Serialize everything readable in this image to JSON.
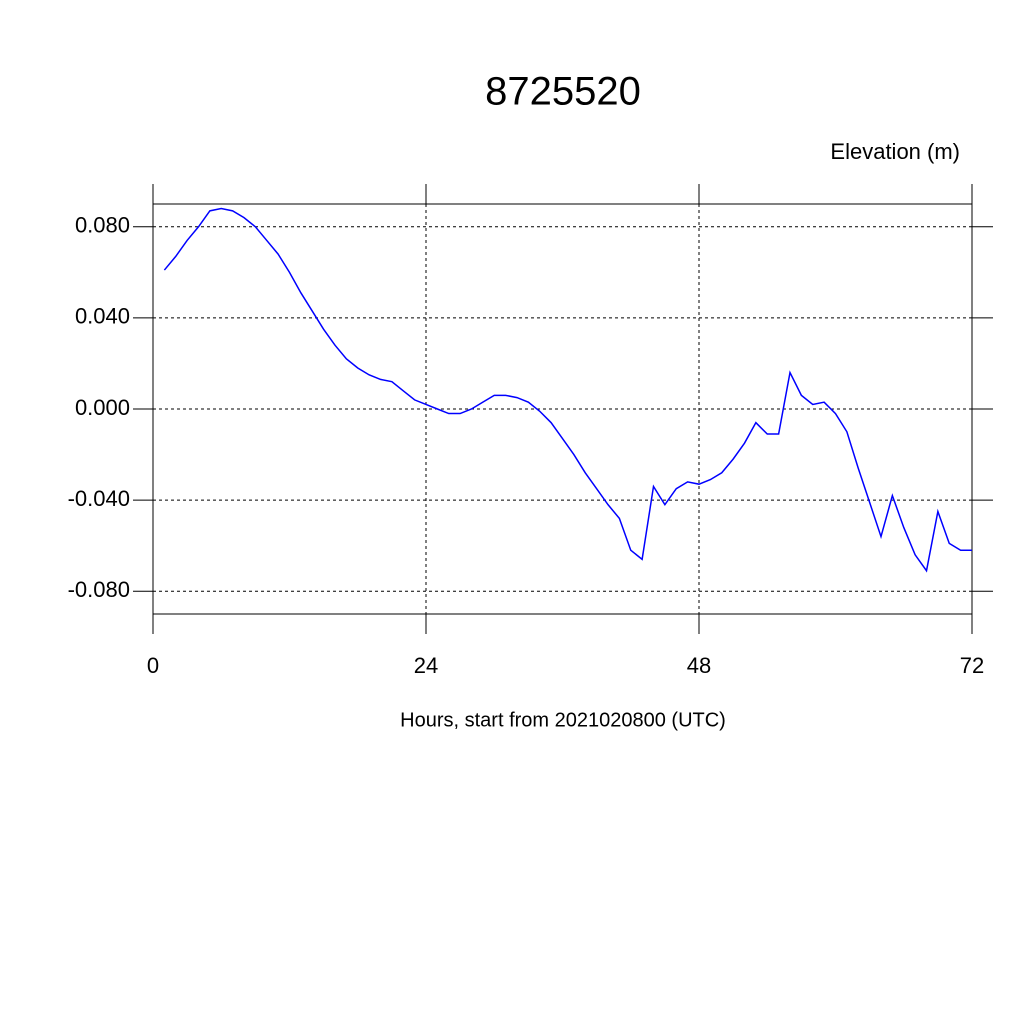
{
  "chart_data": {
    "type": "line",
    "title": "8725520",
    "ylabel": "Elevation (m)",
    "xlabel": "Hours, start from 2021020800 (UTC)",
    "x": [
      1,
      2,
      3,
      4,
      5,
      6,
      7,
      8,
      9,
      10,
      11,
      12,
      13,
      14,
      15,
      16,
      17,
      18,
      19,
      20,
      21,
      22,
      23,
      24,
      25,
      26,
      27,
      28,
      29,
      30,
      31,
      32,
      33,
      34,
      35,
      36,
      37,
      38,
      39,
      40,
      41,
      42,
      43,
      44,
      45,
      46,
      47,
      48,
      49,
      50,
      51,
      52,
      53,
      54,
      55,
      56,
      57,
      58,
      59,
      60,
      61,
      62,
      63,
      64,
      65,
      66,
      67,
      68,
      69,
      70,
      71,
      72
    ],
    "series": [
      {
        "color": "#0000ff",
        "values": [
          0.061,
          0.067,
          0.074,
          0.08,
          0.087,
          0.088,
          0.087,
          0.084,
          0.08,
          0.074,
          0.068,
          0.06,
          0.051,
          0.043,
          0.035,
          0.028,
          0.022,
          0.018,
          0.015,
          0.013,
          0.012,
          0.008,
          0.004,
          0.002,
          0.0,
          -0.002,
          -0.002,
          0.0,
          0.003,
          0.006,
          0.006,
          0.005,
          0.003,
          -0.001,
          -0.006,
          -0.013,
          -0.02,
          -0.028,
          -0.035,
          -0.042,
          -0.048,
          -0.062,
          -0.066,
          -0.034,
          -0.042,
          -0.035,
          -0.032,
          -0.033,
          -0.031,
          -0.028,
          -0.022,
          -0.015,
          -0.006,
          -0.011,
          -0.011,
          0.016,
          0.006,
          0.002,
          0.003,
          -0.002,
          -0.01,
          -0.026,
          -0.041,
          -0.056,
          -0.038,
          -0.052,
          -0.064,
          -0.071,
          -0.045,
          -0.059,
          -0.062,
          -0.062
        ]
      }
    ],
    "xlim": [
      0,
      72
    ],
    "xticks": [
      0,
      24,
      48,
      72
    ],
    "ylim": [
      -0.09,
      0.09
    ],
    "yticks": [
      {
        "value": -0.08,
        "label": "-0.080"
      },
      {
        "value": -0.04,
        "label": "-0.040"
      },
      {
        "value": 0,
        "label": "0.000"
      },
      {
        "value": 0.04,
        "label": "0.040"
      },
      {
        "value": 0.08,
        "label": "0.080"
      }
    ],
    "grid": true
  }
}
